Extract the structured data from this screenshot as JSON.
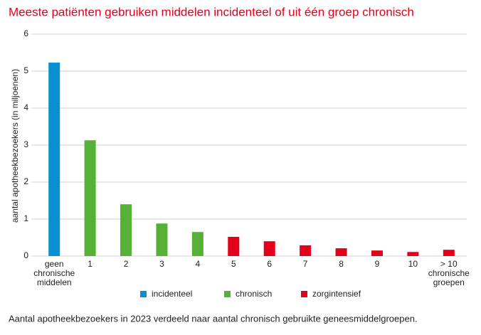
{
  "chart_data": {
    "type": "bar",
    "title": "Meeste patiënten gebruiken middelen incidenteel of uit één groep chronisch",
    "y_label": "aantal apotheekbezoekers (in miljoenen)",
    "caption": "Aantal apotheekbezoekers in 2023 verdeeld naar aantal chronisch gebruikte geneesmiddelgroepen.",
    "categories": [
      "geen\nchronische\nmiddelen",
      "1",
      "2",
      "3",
      "4",
      "5",
      "6",
      "7",
      "8",
      "9",
      "10",
      "> 10\nchronische\ngroepen"
    ],
    "series": [
      {
        "name": "incidenteel",
        "color": "#0a8fd0",
        "values": [
          5.23,
          null,
          null,
          null,
          null,
          null,
          null,
          null,
          null,
          null,
          null,
          null
        ]
      },
      {
        "name": "chronisch",
        "color": "#56b035",
        "values": [
          null,
          3.13,
          1.4,
          0.88,
          0.65,
          null,
          null,
          null,
          null,
          null,
          null,
          null
        ]
      },
      {
        "name": "zorgintensief",
        "color": "#e3001b",
        "values": [
          null,
          null,
          null,
          null,
          null,
          0.52,
          0.4,
          0.29,
          0.21,
          0.15,
          0.11,
          0.17
        ]
      }
    ],
    "ylim": [
      0,
      6
    ],
    "yticks": [
      0,
      1,
      2,
      3,
      4,
      5,
      6
    ],
    "grid": true
  }
}
